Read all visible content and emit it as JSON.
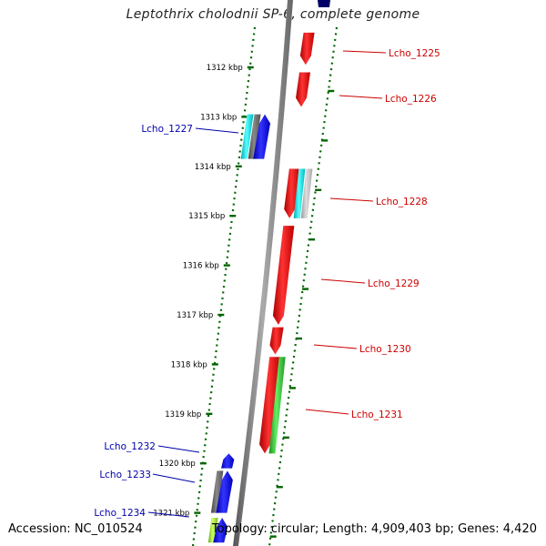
{
  "title": "Leptothrix cholodnii SP-6, complete genome",
  "footer": {
    "accession": "Accession: NC_010524",
    "stats": "Topology: circular; Length: 4,909,403 bp; Genes: 4,420"
  },
  "colors": {
    "forward_label": "#cc0000",
    "reverse_label": "#0000aa",
    "red": "#ee0000",
    "blue": "#0000ee",
    "cyan": "#00e5ee",
    "green": "#33cc33",
    "gray": "#666666",
    "lightgray": "#bbbbbb",
    "lime": "#99dd33",
    "tick": "#006600"
  },
  "ticks": [
    {
      "text": "1312 kbp"
    },
    {
      "text": "1313 kbp"
    },
    {
      "text": "1314 kbp"
    },
    {
      "text": "1315 kbp"
    },
    {
      "text": "1316 kbp"
    },
    {
      "text": "1317 kbp"
    },
    {
      "text": "1318 kbp"
    },
    {
      "text": "1319 kbp"
    },
    {
      "text": "1320 kbp"
    },
    {
      "text": "1321 kbp"
    }
  ],
  "gene_labels": [
    {
      "text": "Lcho_1225",
      "strand": "forward"
    },
    {
      "text": "Lcho_1226",
      "strand": "forward"
    },
    {
      "text": "Lcho_1227",
      "strand": "reverse"
    },
    {
      "text": "Lcho_1228",
      "strand": "forward"
    },
    {
      "text": "Lcho_1229",
      "strand": "forward"
    },
    {
      "text": "Lcho_1230",
      "strand": "forward"
    },
    {
      "text": "Lcho_1231",
      "strand": "forward"
    },
    {
      "text": "Lcho_1232",
      "strand": "reverse"
    },
    {
      "text": "Lcho_1233",
      "strand": "reverse"
    },
    {
      "text": "Lcho_1234",
      "strand": "reverse"
    }
  ],
  "features": [
    {
      "strand": "forward",
      "color": "red",
      "from_kbp": 1311.3,
      "to_kbp": 1311.95,
      "arrow": "down"
    },
    {
      "strand": "forward",
      "color": "red",
      "from_kbp": 1312.1,
      "to_kbp": 1312.8,
      "arrow": "down"
    },
    {
      "strand": "reverse",
      "color": "cyan",
      "from_kbp": 1312.95,
      "to_kbp": 1313.85,
      "lane": -2
    },
    {
      "strand": "reverse",
      "color": "gray",
      "from_kbp": 1312.95,
      "to_kbp": 1313.85,
      "lane": -1
    },
    {
      "strand": "reverse",
      "color": "blue",
      "from_kbp": 1312.95,
      "to_kbp": 1313.85,
      "arrow": "up"
    },
    {
      "strand": "forward",
      "color": "red",
      "from_kbp": 1314.05,
      "to_kbp": 1315.05,
      "arrow": "down"
    },
    {
      "strand": "forward",
      "color": "cyan",
      "from_kbp": 1314.05,
      "to_kbp": 1315.05,
      "lane": 1
    },
    {
      "strand": "forward",
      "color": "lightgray",
      "from_kbp": 1314.05,
      "to_kbp": 1315.05,
      "lane": 2
    },
    {
      "strand": "forward",
      "color": "red",
      "from_kbp": 1315.2,
      "to_kbp": 1317.2,
      "arrow": "down"
    },
    {
      "strand": "forward",
      "color": "red",
      "from_kbp": 1317.25,
      "to_kbp": 1317.8,
      "arrow": "down"
    },
    {
      "strand": "forward",
      "color": "red",
      "from_kbp": 1317.85,
      "to_kbp": 1319.8,
      "arrow": "down"
    },
    {
      "strand": "forward",
      "color": "green",
      "from_kbp": 1317.85,
      "to_kbp": 1319.8,
      "lane": 1
    },
    {
      "strand": "reverse",
      "color": "blue",
      "from_kbp": 1319.8,
      "to_kbp": 1320.1,
      "arrow": "up"
    },
    {
      "strand": "reverse",
      "color": "gray",
      "from_kbp": 1320.15,
      "to_kbp": 1321.0,
      "lane": -1
    },
    {
      "strand": "reverse",
      "color": "blue",
      "from_kbp": 1320.15,
      "to_kbp": 1321.0,
      "arrow": "up"
    },
    {
      "strand": "reverse",
      "color": "lime",
      "from_kbp": 1321.1,
      "to_kbp": 1321.6,
      "lane": -1
    },
    {
      "strand": "reverse",
      "color": "blue",
      "from_kbp": 1321.1,
      "to_kbp": 1321.6,
      "arrow": "up"
    }
  ]
}
